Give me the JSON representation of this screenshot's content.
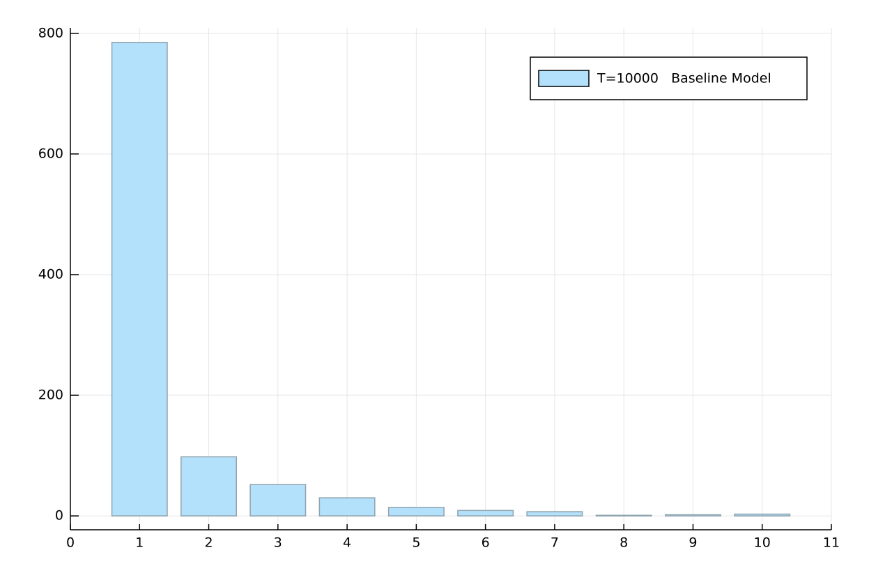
{
  "chart_data": {
    "type": "bar",
    "x": [
      1,
      2,
      3,
      4,
      5,
      6,
      7,
      8,
      9,
      10
    ],
    "series": [
      {
        "name": "T=10000   Baseline Model",
        "color": "#b3e0fb",
        "values": [
          785,
          98,
          52,
          30,
          14,
          9,
          7,
          1,
          2,
          3
        ]
      }
    ],
    "xlim": [
      0,
      11
    ],
    "xticks": [
      0,
      1,
      2,
      3,
      4,
      5,
      6,
      7,
      8,
      9,
      10,
      11
    ],
    "ylim": [
      -23,
      809
    ],
    "yticks": [
      0,
      200,
      400,
      600,
      800
    ],
    "grid": true,
    "legend": "top-right"
  }
}
